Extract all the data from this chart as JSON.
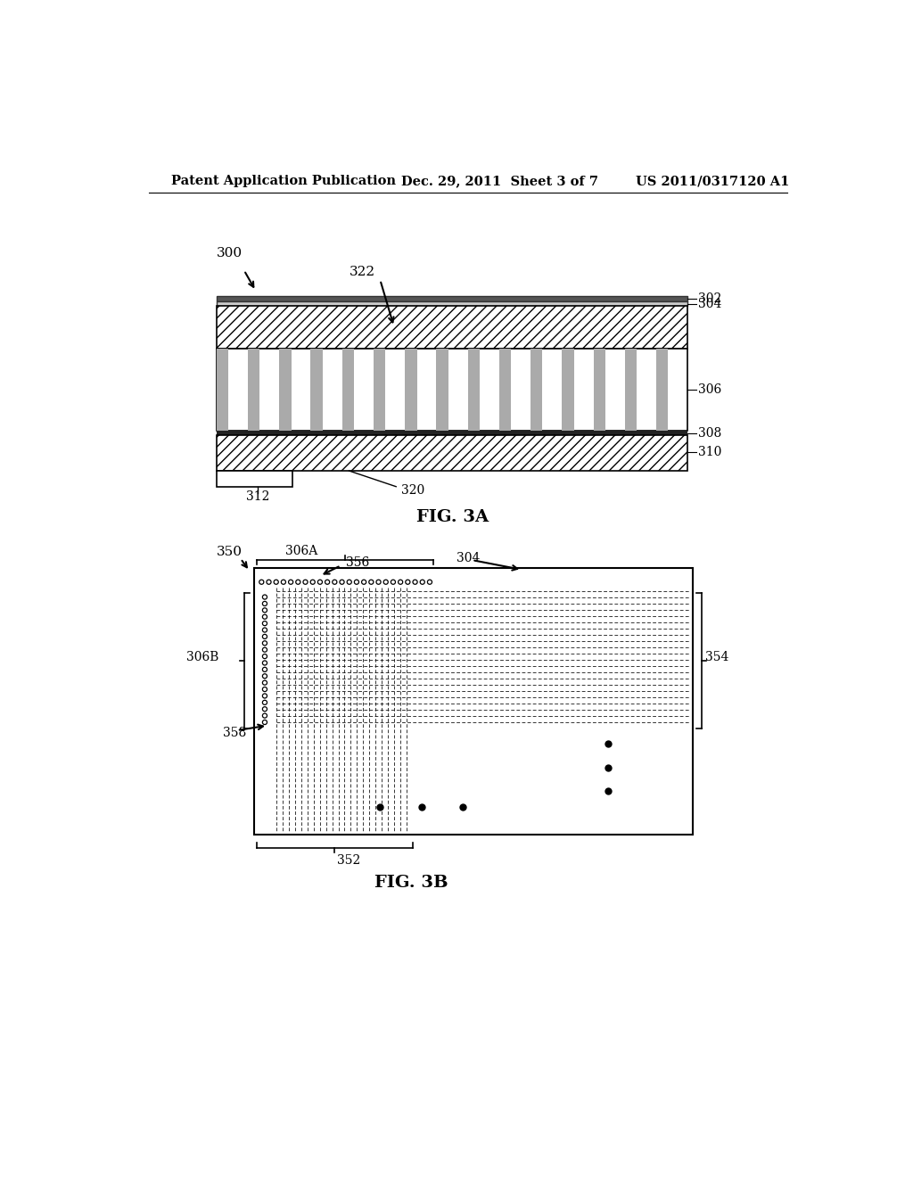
{
  "bg_color": "#ffffff",
  "header_left": "Patent Application Publication",
  "header_center": "Dec. 29, 2011  Sheet 3 of 7",
  "header_right": "US 2011/0317120 A1",
  "fig3a_label": "FIG. 3A",
  "fig3b_label": "FIG. 3B",
  "label_300": "300",
  "label_302": "302",
  "label_304": "304",
  "label_306": "306",
  "label_308": "308",
  "label_310": "310",
  "label_312": "312",
  "label_320": "320",
  "label_322": "322",
  "label_350": "350",
  "label_352": "352",
  "label_354": "354",
  "label_356": "356",
  "label_358": "358",
  "label_304b": "304",
  "label_306A": "306A",
  "label_306B": "306B"
}
